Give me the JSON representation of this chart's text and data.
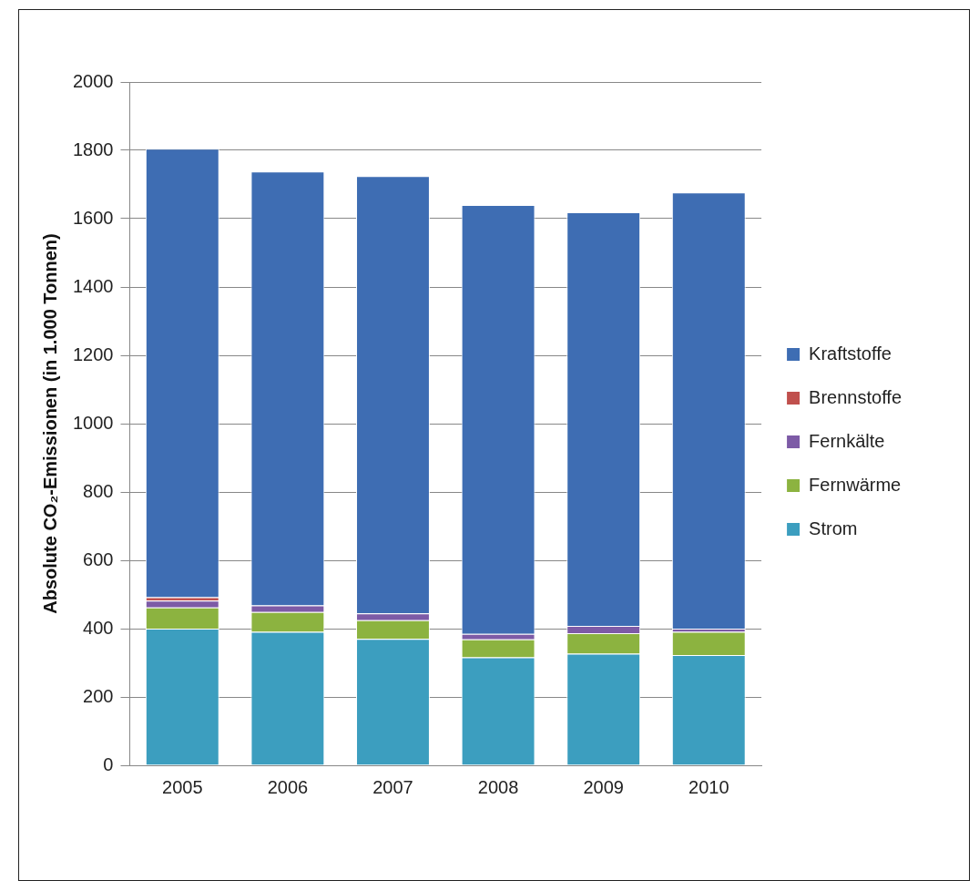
{
  "chart_data": {
    "type": "bar",
    "stacked": true,
    "ylabel": "Absolute CO₂-Emissionen (in 1.000 Tonnen)",
    "categories": [
      "2005",
      "2006",
      "2007",
      "2008",
      "2009",
      "2010"
    ],
    "series": [
      {
        "name": "Strom",
        "color": "#3c9ebf",
        "values": [
          400,
          391,
          370,
          316,
          327,
          323
        ]
      },
      {
        "name": "Fernwärme",
        "color": "#8cb340",
        "values": [
          62,
          58,
          55,
          53,
          60,
          68
        ]
      },
      {
        "name": "Fernkälte",
        "color": "#7d5ba6",
        "values": [
          20,
          19,
          20,
          16,
          21,
          9
        ]
      },
      {
        "name": "Brennstoffe",
        "color": "#c0504d",
        "values": [
          10,
          null,
          null,
          null,
          null,
          null
        ]
      },
      {
        "name": "Kraftstoffe",
        "color": "#3e6db3",
        "values": [
          1313,
          1270,
          1280,
          1255,
          1211,
          1277
        ]
      }
    ],
    "ylim": [
      0,
      2000
    ],
    "yticks": [
      0,
      200,
      400,
      600,
      800,
      1000,
      1200,
      1400,
      1600,
      1800,
      2000
    ],
    "grid": "y",
    "legend": "right"
  }
}
